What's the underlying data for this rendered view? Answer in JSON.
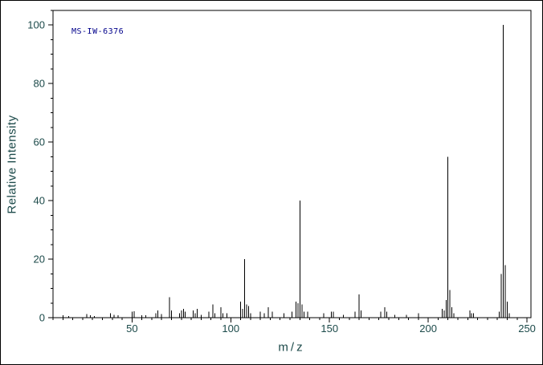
{
  "chart_data": {
    "type": "bar",
    "subtype": "mass-spectrum",
    "annotation": "MS-IW-6376",
    "xlabel": "m/z",
    "ylabel": "Relative Intensity",
    "xlim": [
      10,
      252
    ],
    "ylim": [
      0,
      105
    ],
    "xticks_major": [
      50,
      100,
      150,
      200,
      250
    ],
    "x_minor_step": 5,
    "yticks_major": [
      0,
      20,
      40,
      60,
      80,
      100
    ],
    "y_minor_step": 5,
    "grid": false,
    "legend": "none",
    "colors": {
      "peak": "#000000",
      "frame": "#000000",
      "text": "#1c4a4a",
      "annotation": "#00008b",
      "background": "#ffffff"
    },
    "peaks": [
      [
        15,
        0.8
      ],
      [
        18,
        0.6
      ],
      [
        27,
        1.2
      ],
      [
        29,
        0.8
      ],
      [
        31,
        0.6
      ],
      [
        39,
        1.5
      ],
      [
        41,
        1.0
      ],
      [
        43,
        0.8
      ],
      [
        50,
        2.0
      ],
      [
        51,
        2.2
      ],
      [
        55,
        0.8
      ],
      [
        57,
        0.8
      ],
      [
        62,
        1.5
      ],
      [
        63,
        2.5
      ],
      [
        65,
        1.2
      ],
      [
        69,
        7.0
      ],
      [
        70,
        2.5
      ],
      [
        74,
        1.5
      ],
      [
        75,
        2.5
      ],
      [
        76,
        3.0
      ],
      [
        77,
        2.0
      ],
      [
        81,
        2.5
      ],
      [
        82,
        1.5
      ],
      [
        83,
        3.0
      ],
      [
        85,
        1.0
      ],
      [
        89,
        2.0
      ],
      [
        91,
        4.5
      ],
      [
        92,
        1.5
      ],
      [
        95,
        3.5
      ],
      [
        96,
        1.5
      ],
      [
        98,
        1.5
      ],
      [
        105,
        5.5
      ],
      [
        106,
        3.0
      ],
      [
        107,
        20.0
      ],
      [
        108,
        4.5
      ],
      [
        109,
        4.0
      ],
      [
        110,
        1.5
      ],
      [
        115,
        2.0
      ],
      [
        117,
        1.5
      ],
      [
        119,
        3.5
      ],
      [
        121,
        2.0
      ],
      [
        127,
        1.5
      ],
      [
        131,
        2.0
      ],
      [
        133,
        5.5
      ],
      [
        134,
        5.0
      ],
      [
        135,
        40.0
      ],
      [
        136,
        4.5
      ],
      [
        137,
        2.0
      ],
      [
        139,
        2.0
      ],
      [
        147,
        1.5
      ],
      [
        151,
        2.0
      ],
      [
        152,
        2.0
      ],
      [
        157,
        1.0
      ],
      [
        163,
        2.0
      ],
      [
        165,
        8.0
      ],
      [
        166,
        2.5
      ],
      [
        176,
        2.0
      ],
      [
        178,
        3.5
      ],
      [
        179,
        2.0
      ],
      [
        183,
        1.0
      ],
      [
        189,
        1.0
      ],
      [
        195,
        1.5
      ],
      [
        207,
        3.0
      ],
      [
        208,
        2.5
      ],
      [
        209,
        6.0
      ],
      [
        210,
        55.0
      ],
      [
        211,
        9.5
      ],
      [
        212,
        3.5
      ],
      [
        213,
        1.5
      ],
      [
        221,
        2.5
      ],
      [
        222,
        1.5
      ],
      [
        223,
        1.5
      ],
      [
        236,
        2.0
      ],
      [
        237,
        15.0
      ],
      [
        238,
        100.0
      ],
      [
        239,
        18.0
      ],
      [
        240,
        5.5
      ],
      [
        241,
        1.5
      ]
    ]
  }
}
